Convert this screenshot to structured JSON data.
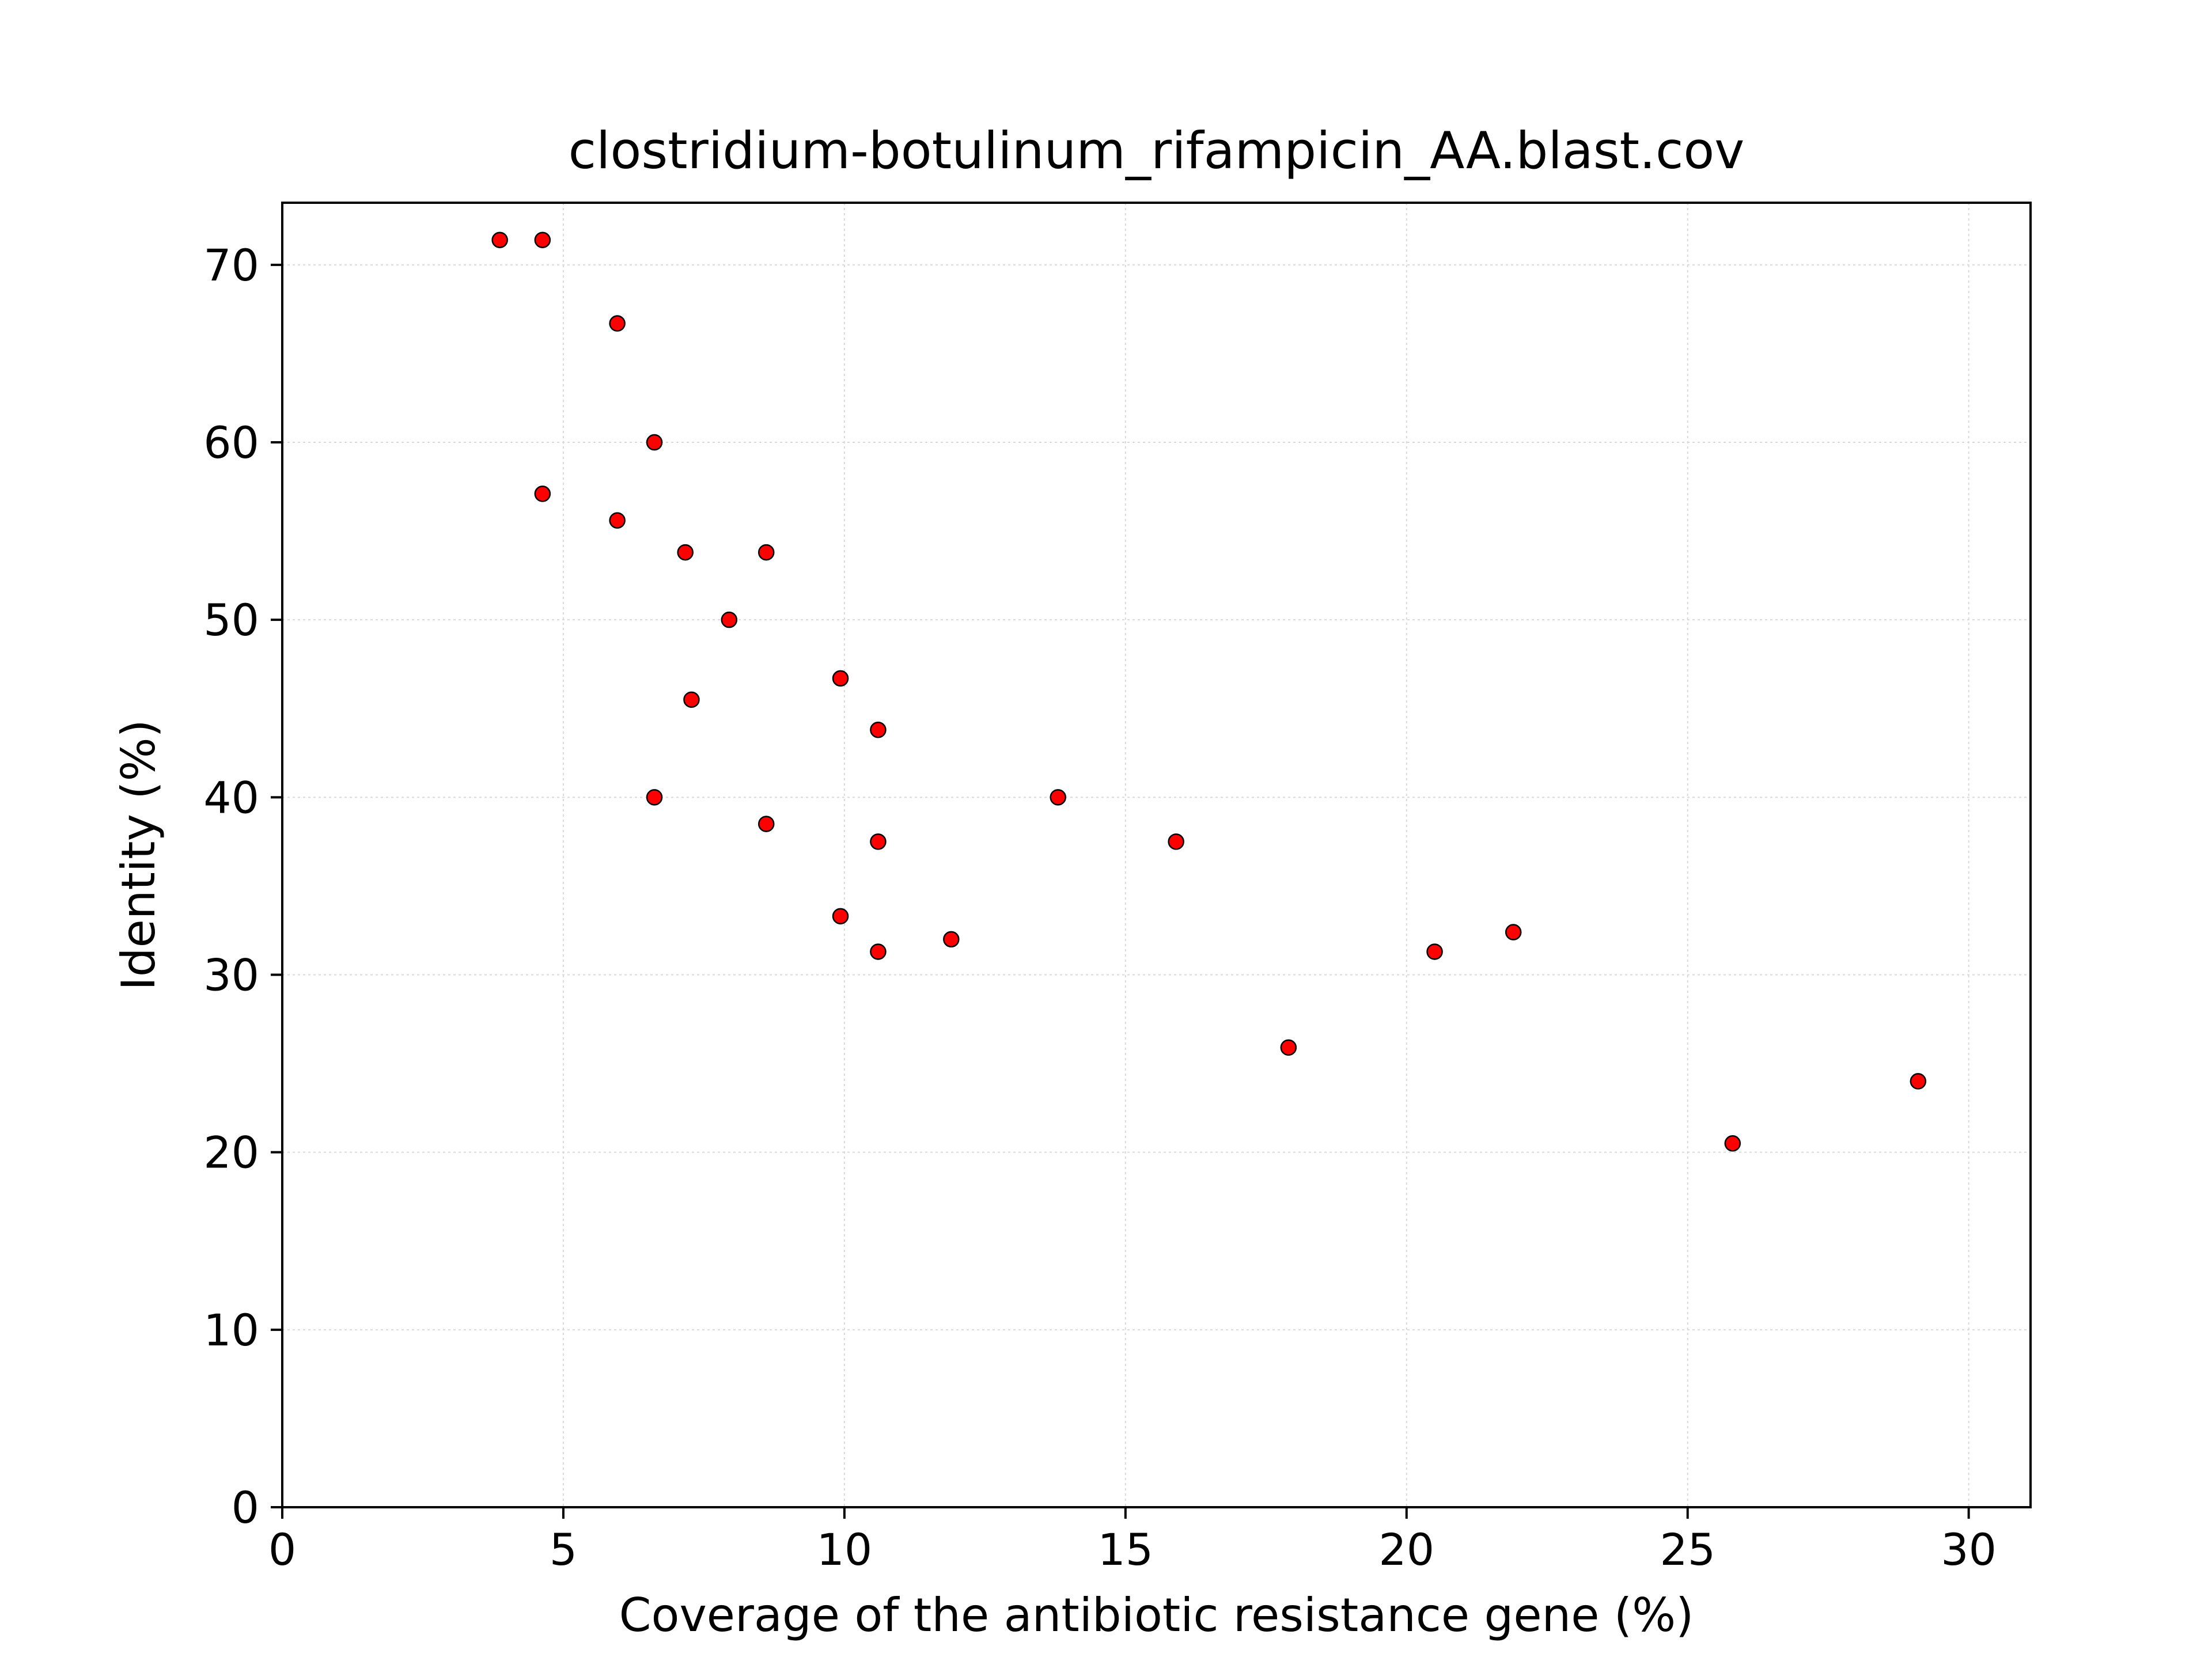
{
  "chart_data": {
    "type": "scatter",
    "title": "clostridium-botulinum_rifampicin_AA.blast.cov",
    "xlabel": "Coverage of the antibiotic resistance gene (%)",
    "ylabel": "Identity (%)",
    "xlim": [
      0,
      31.1
    ],
    "ylim": [
      0,
      73.5
    ],
    "xticks": [
      0,
      5,
      10,
      15,
      20,
      25,
      30
    ],
    "yticks": [
      0,
      10,
      20,
      30,
      40,
      50,
      60,
      70
    ],
    "grid": true,
    "marker_color": "#ff0000",
    "marker_edge_color": "#000000",
    "points": [
      {
        "x": 3.87,
        "y": 71.4
      },
      {
        "x": 4.63,
        "y": 71.4
      },
      {
        "x": 5.96,
        "y": 66.7
      },
      {
        "x": 6.62,
        "y": 60.0
      },
      {
        "x": 4.63,
        "y": 57.1
      },
      {
        "x": 5.96,
        "y": 55.6
      },
      {
        "x": 7.17,
        "y": 53.8
      },
      {
        "x": 8.61,
        "y": 53.8
      },
      {
        "x": 7.95,
        "y": 50.0
      },
      {
        "x": 9.93,
        "y": 46.7
      },
      {
        "x": 7.28,
        "y": 45.5
      },
      {
        "x": 10.6,
        "y": 43.8
      },
      {
        "x": 6.62,
        "y": 40.0
      },
      {
        "x": 13.8,
        "y": 40.0
      },
      {
        "x": 8.61,
        "y": 38.5
      },
      {
        "x": 10.6,
        "y": 37.5
      },
      {
        "x": 15.9,
        "y": 37.5
      },
      {
        "x": 9.93,
        "y": 33.3
      },
      {
        "x": 21.9,
        "y": 32.4
      },
      {
        "x": 11.9,
        "y": 32.0
      },
      {
        "x": 10.6,
        "y": 31.3
      },
      {
        "x": 20.5,
        "y": 31.3
      },
      {
        "x": 17.9,
        "y": 25.9
      },
      {
        "x": 29.1,
        "y": 24.0
      },
      {
        "x": 25.8,
        "y": 20.5
      }
    ]
  }
}
